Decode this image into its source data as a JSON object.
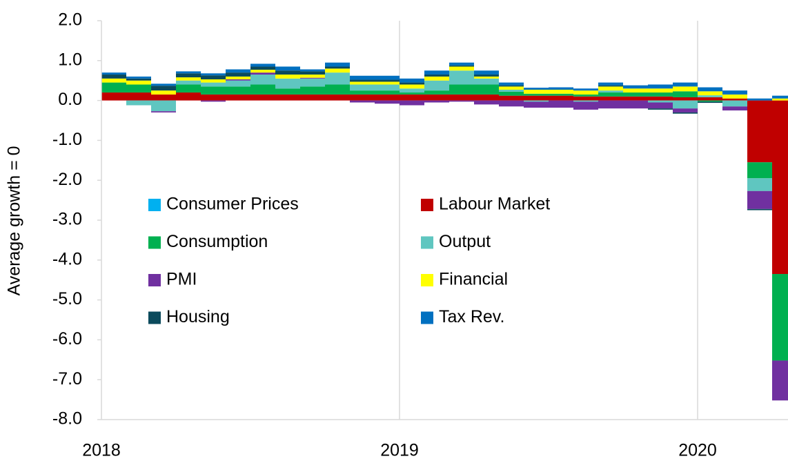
{
  "chart_data": {
    "type": "stacked_bar",
    "y_label": "Average growth = 0",
    "categories": [
      "2018",
      null,
      null,
      null,
      null,
      null,
      null,
      null,
      null,
      null,
      null,
      null,
      "2019",
      null,
      null,
      null,
      null,
      null,
      null,
      null,
      null,
      null,
      null,
      null,
      "2020",
      null,
      null,
      null
    ],
    "ylim": [
      -8,
      2
    ],
    "yticks": [
      {
        "value": 2,
        "label": "2.0"
      },
      {
        "value": 1,
        "label": "1.0"
      },
      {
        "value": 0,
        "label": "0.0"
      },
      {
        "value": -1,
        "label": "-1.0"
      },
      {
        "value": -2,
        "label": "-2.0"
      },
      {
        "value": -3,
        "label": "-3.0"
      },
      {
        "value": -4,
        "label": "-4.0"
      },
      {
        "value": -5,
        "label": "-5.0"
      },
      {
        "value": -6,
        "label": "-6.0"
      },
      {
        "value": -7,
        "label": "-7.0"
      },
      {
        "value": -8,
        "label": "-8.0"
      }
    ],
    "grid": false,
    "xgrid": true,
    "series": [
      {
        "name": "Consumer Prices",
        "color": "#00b0f0",
        "values": [
          0,
          0,
          0,
          0,
          0,
          0,
          0,
          0,
          0,
          0,
          0,
          0,
          0,
          0,
          0,
          0,
          0,
          0,
          0,
          0,
          0,
          0,
          0,
          0,
          0,
          0,
          0,
          0
        ]
      },
      {
        "name": "Labour Market",
        "color": "#c00000",
        "values": [
          0.2,
          0.2,
          0.15,
          0.2,
          0.15,
          0.15,
          0.15,
          0.15,
          0.15,
          0.15,
          0.15,
          0.15,
          0.15,
          0.15,
          0.15,
          0.15,
          0.12,
          0.12,
          0.12,
          0.1,
          0.1,
          0.1,
          0.1,
          0.08,
          0.08,
          0.05,
          -1.55,
          -4.35
        ]
      },
      {
        "name": "Consumption",
        "color": "#00b050",
        "values": [
          0.25,
          0.2,
          0,
          0.2,
          0.2,
          0.2,
          0.25,
          0.15,
          0.2,
          0.25,
          0.1,
          0.1,
          0.05,
          0.1,
          0.25,
          0.25,
          0.1,
          0.05,
          0.05,
          0.05,
          0.1,
          0.1,
          0.1,
          0.15,
          -0.03,
          0,
          -0.4,
          -2.17
        ]
      },
      {
        "name": "Output",
        "color": "#5fc6c0",
        "values": [
          0,
          -0.12,
          -0.27,
          0.1,
          0.1,
          0.15,
          0.25,
          0.25,
          0.2,
          0.3,
          0.15,
          0.15,
          0.1,
          0.25,
          0.35,
          0.15,
          0.05,
          -0.03,
          0,
          -0.03,
          0.05,
          0,
          -0.05,
          -0.2,
          0.05,
          -0.15,
          -0.32,
          0
        ]
      },
      {
        "name": "PMI",
        "color": "#7030a0",
        "values": [
          0,
          0,
          -0.03,
          0,
          -0.03,
          0.03,
          0.05,
          0,
          0.02,
          0,
          -0.05,
          -0.08,
          -0.12,
          -0.05,
          -0.03,
          -0.1,
          -0.15,
          -0.15,
          -0.18,
          -0.2,
          -0.2,
          -0.2,
          -0.15,
          -0.1,
          0,
          -0.1,
          -0.45,
          -1.0
        ]
      },
      {
        "name": "Financial",
        "color": "#ffff00",
        "values": [
          0.1,
          0.1,
          0.1,
          0.08,
          0.08,
          0.07,
          0.07,
          0.1,
          0.08,
          0.1,
          0.07,
          0.07,
          0.1,
          0.1,
          0.1,
          0.05,
          0.08,
          0.1,
          0.1,
          0.1,
          0.1,
          0.1,
          0.1,
          0.12,
          0.1,
          0.1,
          0,
          0.05
        ]
      },
      {
        "name": "Housing",
        "color": "#0b4a5c",
        "values": [
          0.1,
          0.05,
          0.12,
          0.1,
          0.1,
          0.1,
          0.08,
          0.1,
          0.08,
          0.05,
          0.05,
          0.05,
          0.05,
          0.05,
          0.03,
          0.05,
          0.03,
          0,
          0,
          0,
          0.03,
          0,
          -0.03,
          -0.03,
          -0.03,
          0,
          -0.03,
          0
        ]
      },
      {
        "name": "Tax Rev.",
        "color": "#0070c0",
        "values": [
          0.05,
          0.05,
          0.05,
          0.05,
          0.05,
          0.08,
          0.07,
          0.1,
          0.05,
          0.1,
          0.1,
          0.1,
          0.1,
          0.1,
          0.07,
          0.1,
          0.07,
          0.05,
          0.06,
          0.05,
          0.07,
          0.08,
          0.1,
          0.1,
          0.1,
          0.1,
          0.05,
          0.07
        ]
      }
    ]
  }
}
